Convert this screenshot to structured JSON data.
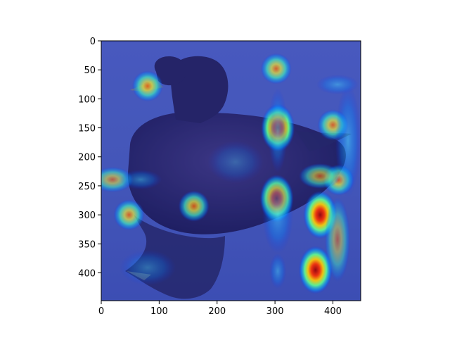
{
  "figure": {
    "image_description": "grebe duck on blue water with attention heatmap overlay",
    "colormap": "jet",
    "frame_color": "#000000",
    "x_axis": {
      "range": [
        0,
        448
      ],
      "ticks": [
        0,
        100,
        200,
        300,
        400
      ],
      "tick_labels": [
        "0",
        "100",
        "200",
        "300",
        "400"
      ]
    },
    "y_axis": {
      "range": [
        0,
        448
      ],
      "inverted": true,
      "ticks": [
        0,
        50,
        100,
        150,
        200,
        250,
        300,
        350,
        400
      ],
      "tick_labels": [
        "0",
        "50",
        "100",
        "150",
        "200",
        "250",
        "300",
        "350",
        "400"
      ]
    },
    "hotspots": [
      {
        "x": 305,
        "y": 150,
        "level": "high"
      },
      {
        "x": 303,
        "y": 272,
        "level": "high"
      },
      {
        "x": 378,
        "y": 300,
        "level": "high"
      },
      {
        "x": 370,
        "y": 395,
        "level": "high"
      },
      {
        "x": 48,
        "y": 300,
        "level": "medium"
      },
      {
        "x": 80,
        "y": 78,
        "level": "medium"
      },
      {
        "x": 160,
        "y": 285,
        "level": "medium"
      },
      {
        "x": 302,
        "y": 48,
        "level": "medium"
      },
      {
        "x": 400,
        "y": 145,
        "level": "medium"
      },
      {
        "x": 410,
        "y": 240,
        "level": "medium"
      }
    ]
  }
}
